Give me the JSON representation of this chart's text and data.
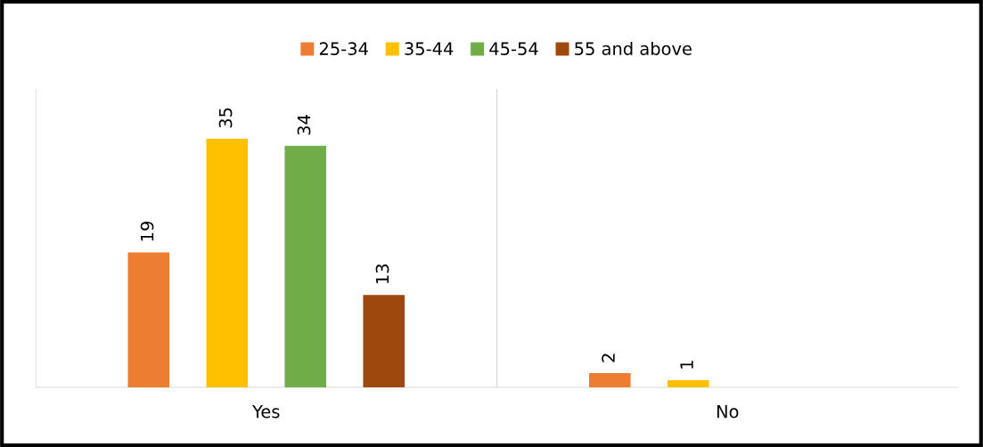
{
  "chart_data": {
    "type": "bar",
    "categories": [
      "Yes",
      "No"
    ],
    "series": [
      {
        "name": "25-34",
        "color": "#ed7d31",
        "values": [
          19,
          2
        ]
      },
      {
        "name": "35-44",
        "color": "#ffc000",
        "values": [
          35,
          1
        ]
      },
      {
        "name": "45-54",
        "color": "#70ad47",
        "values": [
          34,
          null
        ]
      },
      {
        "name": "55 and above",
        "color": "#9e480e",
        "values": [
          13,
          null
        ]
      }
    ],
    "data_labels": true,
    "legend": "top",
    "grid": "x",
    "tick_labels": "x"
  }
}
